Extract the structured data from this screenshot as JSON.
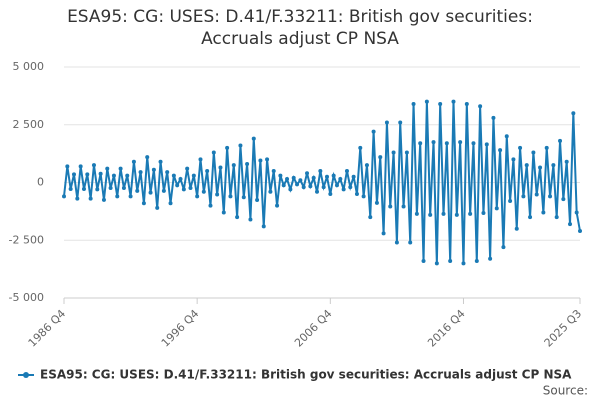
{
  "chart_data": {
    "type": "line",
    "title": "ESA95: CG: USES: D.41/F.33211: British gov securities: Accruals adjust CP NSA",
    "source": "Source:",
    "categories": [
      "1986 Q4",
      null,
      null,
      null,
      null,
      null,
      null,
      null,
      null,
      null,
      null,
      null,
      null,
      null,
      null,
      null,
      null,
      null,
      null,
      null,
      null,
      null,
      null,
      null,
      null,
      null,
      null,
      null,
      null,
      null,
      null,
      null,
      null,
      null,
      null,
      null,
      null,
      null,
      null,
      null,
      "1996 Q4",
      null,
      null,
      null,
      null,
      null,
      null,
      null,
      null,
      null,
      null,
      null,
      null,
      null,
      null,
      null,
      null,
      null,
      null,
      null,
      null,
      null,
      null,
      null,
      null,
      null,
      null,
      null,
      null,
      null,
      null,
      null,
      null,
      null,
      null,
      null,
      null,
      null,
      null,
      null,
      "2006 Q4",
      null,
      null,
      null,
      null,
      null,
      null,
      null,
      null,
      null,
      null,
      null,
      null,
      null,
      null,
      null,
      null,
      null,
      null,
      null,
      null,
      null,
      null,
      null,
      null,
      null,
      null,
      null,
      null,
      null,
      null,
      null,
      null,
      null,
      null,
      null,
      null,
      null,
      null,
      null,
      "2016 Q4",
      null,
      null,
      null,
      null,
      null,
      null,
      null,
      null,
      null,
      null,
      null,
      null,
      null,
      null,
      null,
      null,
      null,
      null,
      null,
      null,
      null,
      null,
      null,
      null,
      null,
      null,
      null,
      null,
      null,
      null,
      null,
      null,
      null,
      null,
      "2025 Q3"
    ],
    "series": [
      {
        "name": "ESA95: CG: USES: D.41/F.33211: British gov securities: Accruals adjust CP NSA",
        "color": "#1a7ab5",
        "values": [
          -600,
          700,
          -280,
          350,
          -700,
          700,
          -280,
          350,
          -700,
          750,
          -300,
          380,
          -750,
          600,
          -240,
          300,
          -600,
          600,
          -240,
          300,
          -600,
          900,
          -360,
          450,
          -900,
          1100,
          -440,
          550,
          -1100,
          900,
          -360,
          450,
          -900,
          300,
          -120,
          150,
          -300,
          600,
          -240,
          300,
          -600,
          1000,
          -400,
          500,
          -1000,
          1300,
          -520,
          650,
          -1300,
          1500,
          -600,
          750,
          -1500,
          1600,
          -640,
          800,
          -1600,
          1900,
          -760,
          950,
          -1900,
          1000,
          -400,
          500,
          -1000,
          300,
          -120,
          150,
          -300,
          200,
          -80,
          100,
          -200,
          400,
          -160,
          200,
          -400,
          500,
          -200,
          250,
          -500,
          300,
          -120,
          150,
          -300,
          500,
          -200,
          250,
          -500,
          1500,
          -600,
          750,
          -1500,
          2200,
          -880,
          1100,
          -2200,
          2600,
          -1040,
          1300,
          -2600,
          2600,
          -1040,
          1300,
          -2600,
          3400,
          -1360,
          1700,
          -3400,
          3500,
          -1400,
          1750,
          -3500,
          3400,
          -1360,
          1700,
          -3400,
          3500,
          -1400,
          1750,
          -3500,
          3400,
          -1360,
          1700,
          -3400,
          3300,
          -1320,
          1650,
          -3300,
          2800,
          -1120,
          1400,
          -2800,
          2000,
          -800,
          1000,
          -2000,
          1500,
          -600,
          750,
          -1500,
          1300,
          -520,
          650,
          -1300,
          1500,
          -600,
          750,
          -1500,
          1800,
          -720,
          900,
          -1800,
          3000,
          -1300,
          -2100
        ]
      }
    ],
    "ylim": [
      -5000,
      5000
    ],
    "yticks": [
      {
        "value": -5000,
        "label": "-5 000"
      },
      {
        "value": -2500,
        "label": "-2 500"
      },
      0,
      {
        "value": 2500,
        "label": "2 500"
      },
      {
        "value": 5000,
        "label": "5 000"
      }
    ],
    "grid": true
  }
}
